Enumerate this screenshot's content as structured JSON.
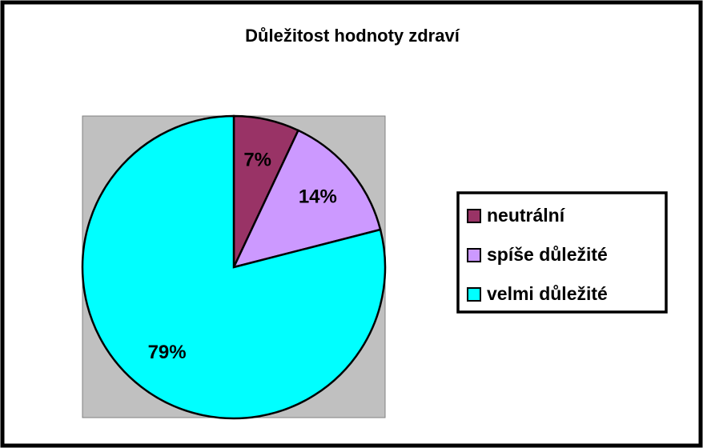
{
  "chart_data": {
    "type": "pie",
    "title": "Důležitost hodnoty zdraví",
    "categories": [
      "neutrální",
      "spíše důležité",
      "velmi důležité"
    ],
    "values": [
      7,
      14,
      79
    ],
    "value_labels": [
      "7%",
      "14%",
      "79%"
    ],
    "colors": [
      "#993366",
      "#cc99ff",
      "#00ffff"
    ],
    "legend": "right"
  }
}
